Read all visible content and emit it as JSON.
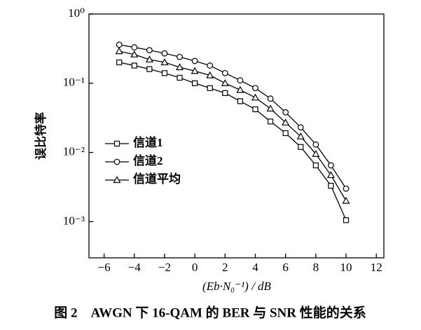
{
  "chart_data": {
    "type": "line",
    "title": "图 2　AWGN 下 16-QAM 的 BER 与 SNR 性能的关系",
    "x_label": "(Eb·N₀⁻¹) / dB",
    "y_label": "误比特率",
    "x": [
      -5,
      -4,
      -3,
      -2,
      -1,
      0,
      1,
      2,
      3,
      4,
      5,
      6,
      7,
      8,
      9,
      10
    ],
    "series": [
      {
        "name": "信道1",
        "color": "#000000",
        "marker": "square",
        "values": [
          0.2,
          0.18,
          0.16,
          0.14,
          0.12,
          0.1,
          0.085,
          0.072,
          0.055,
          0.042,
          0.028,
          0.019,
          0.012,
          0.0065,
          0.0033,
          0.00105
        ]
      },
      {
        "name": "信道2",
        "color": "#000000",
        "marker": "circle",
        "values": [
          0.36,
          0.33,
          0.3,
          0.27,
          0.24,
          0.21,
          0.18,
          0.14,
          0.11,
          0.085,
          0.06,
          0.038,
          0.023,
          0.013,
          0.0065,
          0.003
        ]
      },
      {
        "name": "信道平均",
        "color": "#000000",
        "marker": "triangle",
        "values": [
          0.29,
          0.26,
          0.22,
          0.2,
          0.17,
          0.15,
          0.13,
          0.1,
          0.08,
          0.062,
          0.043,
          0.027,
          0.017,
          0.0095,
          0.0047,
          0.002
        ]
      }
    ],
    "xlim": [
      -7,
      12.5
    ],
    "xticks": [
      {
        "value": -6,
        "label": "−6"
      },
      {
        "value": -4,
        "label": "−4"
      },
      {
        "value": -2,
        "label": "−2"
      },
      0,
      2,
      4,
      6,
      8,
      10,
      12
    ],
    "ylim": [
      0.0003,
      1
    ],
    "log_y": true,
    "yticks": [
      {
        "value": 0.001,
        "label": "10⁻³"
      },
      {
        "value": 0.01,
        "label": "10⁻²"
      },
      {
        "value": 0.1,
        "label": "10⁻¹"
      },
      {
        "value": 1,
        "label": "10⁰"
      }
    ],
    "legend": "center left"
  }
}
